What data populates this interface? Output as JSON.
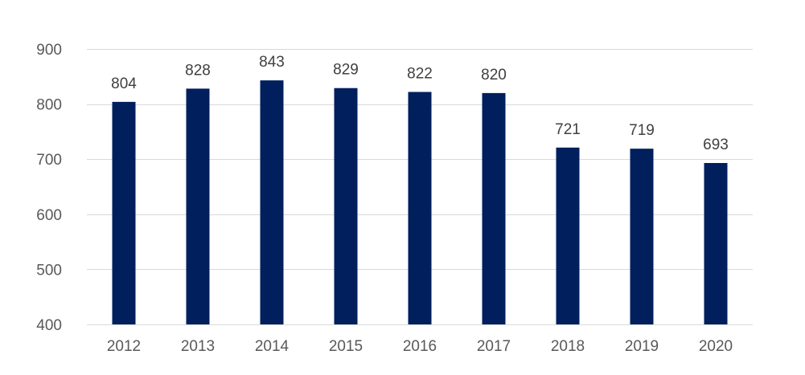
{
  "chart_data": {
    "type": "bar",
    "categories": [
      "2012",
      "2013",
      "2014",
      "2015",
      "2016",
      "2017",
      "2018",
      "2019",
      "2020"
    ],
    "values": [
      804,
      828,
      843,
      829,
      822,
      820,
      721,
      719,
      693
    ],
    "data_labels": [
      "804",
      "828",
      "843",
      "829",
      "822",
      "820",
      "721",
      "719",
      "693"
    ],
    "y_ticks": [
      "400",
      "500",
      "600",
      "700",
      "800",
      "900"
    ],
    "ylim": [
      400,
      900
    ],
    "grid": true,
    "legend": "none",
    "bar_color": "#001f5c"
  }
}
